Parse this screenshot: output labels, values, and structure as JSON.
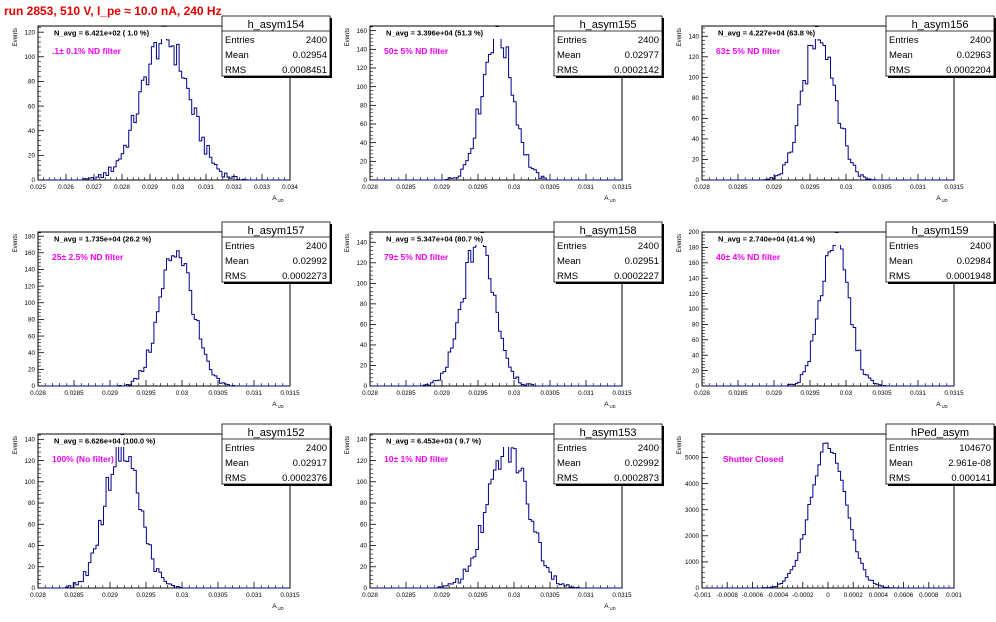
{
  "page": {
    "title": "run 2853,   510 V, I_pe ≈ 10.0 nA, 240 Hz"
  },
  "colors": {
    "histogram": "#00008b",
    "annotation": "#ee00ee",
    "title": "#e00000"
  },
  "chart_data": [
    {
      "type": "histogram",
      "name": "h_asym154",
      "ylabel": "Events",
      "xlabel": "A_UD",
      "navg": "N_avg = 6.421e+02 ( 1.0 %)",
      "label": ".1± 0.1% ND filter",
      "stats": [
        [
          "Entries",
          "2400"
        ],
        [
          "Mean",
          "0.02954"
        ],
        [
          "RMS",
          "0.0008451"
        ]
      ],
      "xlim": [
        0.025,
        0.034
      ],
      "ylim": [
        0,
        125
      ],
      "xticks": [
        0.025,
        0.026,
        0.027,
        0.028,
        0.029,
        0.03,
        0.031,
        0.032,
        0.033,
        0.034
      ],
      "xticklabels": [
        "0.025",
        "0.026",
        "0.027",
        "0.028",
        "0.029",
        "0.03",
        "0.031",
        "0.032",
        "0.033",
        "0.034"
      ],
      "yticks": [
        0,
        20,
        40,
        60,
        80,
        100,
        120
      ],
      "mean": 0.02954,
      "sigma": 0.0008451,
      "peak": 115
    },
    {
      "type": "histogram",
      "name": "h_asym155",
      "ylabel": "Events",
      "xlabel": "A_UD",
      "navg": "N_avg = 3.396e+04 (51.3 %)",
      "label": "50± 5% ND filter",
      "stats": [
        [
          "Entries",
          "2400"
        ],
        [
          "Mean",
          "0.02977"
        ],
        [
          "RMS",
          "0.0002142"
        ]
      ],
      "xlim": [
        0.028,
        0.0315
      ],
      "ylim": [
        0,
        165
      ],
      "xticks": [
        0.028,
        0.0285,
        0.029,
        0.0295,
        0.03,
        0.0305,
        0.031,
        0.0315
      ],
      "xticklabels": [
        "0.028",
        "0.0285",
        "0.029",
        "0.0295",
        "0.03",
        "0.0305",
        "0.031",
        "0.0315"
      ],
      "yticks": [
        0,
        20,
        40,
        60,
        80,
        100,
        120,
        140,
        160
      ],
      "mean": 0.02977,
      "sigma": 0.0002142,
      "peak": 158
    },
    {
      "type": "histogram",
      "name": "h_asym156",
      "ylabel": "Events",
      "xlabel": "A_UD",
      "navg": "N_avg = 4.227e+04 (63.8 %)",
      "label": "63± 5% ND filter",
      "stats": [
        [
          "Entries",
          "2400"
        ],
        [
          "Mean",
          "0.02963"
        ],
        [
          "RMS",
          "0.0002204"
        ]
      ],
      "xlim": [
        0.028,
        0.0315
      ],
      "ylim": [
        0,
        150
      ],
      "xticks": [
        0.028,
        0.0285,
        0.029,
        0.0295,
        0.03,
        0.0305,
        0.031,
        0.0315
      ],
      "xticklabels": [
        "0.028",
        "0.0285",
        "0.029",
        "0.0295",
        "0.03",
        "0.0305",
        "0.031",
        "0.0315"
      ],
      "yticks": [
        0,
        20,
        40,
        60,
        80,
        100,
        120,
        140
      ],
      "mean": 0.02963,
      "sigma": 0.0002204,
      "peak": 145
    },
    {
      "type": "histogram",
      "name": "h_asym157",
      "ylabel": "Events",
      "xlabel": "A_UD",
      "navg": "N_avg = 1.735e+04 (26.2 %)",
      "label": "25± 2.5% ND filter",
      "stats": [
        [
          "Entries",
          "2400"
        ],
        [
          "Mean",
          "0.02992"
        ],
        [
          "RMS",
          "0.0002273"
        ]
      ],
      "xlim": [
        0.028,
        0.0315
      ],
      "ylim": [
        0,
        185
      ],
      "xticks": [
        0.028,
        0.0285,
        0.029,
        0.0295,
        0.03,
        0.0305,
        0.031,
        0.0315
      ],
      "xticklabels": [
        "0.028",
        "0.0285",
        "0.029",
        "0.0295",
        "0.03",
        "0.0305",
        "0.031",
        "0.0315"
      ],
      "yticks": [
        0,
        20,
        40,
        60,
        80,
        100,
        120,
        140,
        160,
        180
      ],
      "mean": 0.02992,
      "sigma": 0.0002273,
      "peak": 165
    },
    {
      "type": "histogram",
      "name": "h_asym158",
      "ylabel": "Events",
      "xlabel": "A_UD",
      "navg": "N_avg = 5.347e+04 (80.7 %)",
      "label": "79± 5% ND filter",
      "stats": [
        [
          "Entries",
          "2400"
        ],
        [
          "Mean",
          "0.02951"
        ],
        [
          "RMS",
          "0.0002227"
        ]
      ],
      "xlim": [
        0.028,
        0.0315
      ],
      "ylim": [
        0,
        150
      ],
      "xticks": [
        0.028,
        0.0285,
        0.029,
        0.0295,
        0.03,
        0.0305,
        0.031,
        0.0315
      ],
      "xticklabels": [
        "0.028",
        "0.0285",
        "0.029",
        "0.0295",
        "0.03",
        "0.0305",
        "0.031",
        "0.0315"
      ],
      "yticks": [
        0,
        20,
        40,
        60,
        80,
        100,
        120,
        140
      ],
      "mean": 0.02951,
      "sigma": 0.0002227,
      "peak": 142
    },
    {
      "type": "histogram",
      "name": "h_asym159",
      "ylabel": "Events",
      "xlabel": "A_UD",
      "navg": "N_avg = 2.740e+04 (41.4 %)",
      "label": "40± 4% ND filter",
      "stats": [
        [
          "Entries",
          "2400"
        ],
        [
          "Mean",
          "0.02984"
        ],
        [
          "RMS",
          "0.0001948"
        ]
      ],
      "xlim": [
        0.028,
        0.0315
      ],
      "ylim": [
        0,
        200
      ],
      "xticks": [
        0.028,
        0.0285,
        0.029,
        0.0295,
        0.03,
        0.0305,
        0.031,
        0.0315
      ],
      "xticklabels": [
        "0.028",
        "0.0285",
        "0.029",
        "0.0295",
        "0.03",
        "0.0305",
        "0.031",
        "0.0315"
      ],
      "yticks": [
        0,
        20,
        40,
        60,
        80,
        100,
        120,
        140,
        160,
        180,
        200
      ],
      "mean": 0.02984,
      "sigma": 0.0001948,
      "peak": 190
    },
    {
      "type": "histogram",
      "name": "h_asym152",
      "ylabel": "Events",
      "xlabel": "A_UD",
      "navg": "N_avg = 6.626e+04 (100.0 %)",
      "label": "100% (No filter)",
      "stats": [
        [
          "Entries",
          "2400"
        ],
        [
          "Mean",
          "0.02917"
        ],
        [
          "RMS",
          "0.0002376"
        ]
      ],
      "xlim": [
        0.028,
        0.0315
      ],
      "ylim": [
        0,
        145
      ],
      "xticks": [
        0.028,
        0.0285,
        0.029,
        0.0295,
        0.03,
        0.0305,
        0.031,
        0.0315
      ],
      "xticklabels": [
        "0.028",
        "0.0285",
        "0.029",
        "0.0295",
        "0.03",
        "0.0305",
        "0.031",
        "0.0315"
      ],
      "yticks": [
        0,
        20,
        40,
        60,
        80,
        100,
        120,
        140
      ],
      "mean": 0.02917,
      "sigma": 0.0002376,
      "peak": 135
    },
    {
      "type": "histogram",
      "name": "h_asym153",
      "ylabel": "Events",
      "xlabel": "A_UD",
      "navg": "N_avg = 6.453e+03 ( 9.7 %)",
      "label": "10± 1% ND filter",
      "stats": [
        [
          "Entries",
          "2400"
        ],
        [
          "Mean",
          "0.02992"
        ],
        [
          "RMS",
          "0.0002873"
        ]
      ],
      "xlim": [
        0.028,
        0.0315
      ],
      "ylim": [
        0,
        145
      ],
      "xticks": [
        0.028,
        0.0285,
        0.029,
        0.0295,
        0.03,
        0.0305,
        0.031,
        0.0315
      ],
      "xticklabels": [
        "0.028",
        "0.0285",
        "0.029",
        "0.0295",
        "0.03",
        "0.0305",
        "0.031",
        "0.0315"
      ],
      "yticks": [
        0,
        20,
        40,
        60,
        80,
        100,
        120,
        140
      ],
      "mean": 0.02992,
      "sigma": 0.0002873,
      "peak": 130
    },
    {
      "type": "histogram",
      "name": "hPed_asym",
      "ylabel": "Events",
      "xlabel": "",
      "navg": "",
      "label": "Shutter Closed",
      "stats": [
        [
          "Entries",
          "104670"
        ],
        [
          "Mean",
          "2.961e-08"
        ],
        [
          "RMS",
          "0.000141"
        ]
      ],
      "xlim": [
        -0.001,
        0.001
      ],
      "ylim": [
        0,
        5900
      ],
      "xticks": [
        -0.001,
        -0.0008,
        -0.0006,
        -0.0004,
        -0.0002,
        0,
        0.0002,
        0.0004,
        0.0006,
        0.0008,
        0.001
      ],
      "xticklabels": [
        "-0.001",
        "-0.0008",
        "-0.0006",
        "-0.0004",
        "-0.0002",
        "0",
        "0.0002",
        "0.0004",
        "0.0006",
        "0.0008",
        "0.001"
      ],
      "yticks": [
        0,
        1000,
        2000,
        3000,
        4000,
        5000
      ],
      "mean": 0.0,
      "sigma": 0.000141,
      "peak": 5450
    }
  ]
}
